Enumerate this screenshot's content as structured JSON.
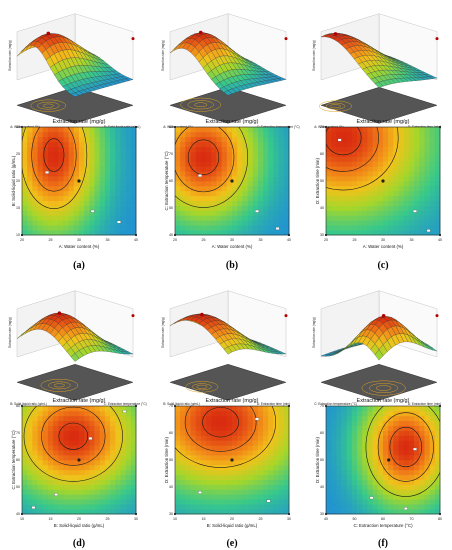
{
  "figure": {
    "panel_labels": [
      "(a)",
      "(b)",
      "(c)",
      "(d)",
      "(e)",
      "(f)"
    ]
  },
  "colors": {
    "high": "#d92b10",
    "mid_high": "#f07818",
    "mid": "#f2c21a",
    "mid_low": "#a6d62a",
    "low": "#37c88c",
    "lowest": "#1f8fd6",
    "contour_line": "#1a1a1a",
    "floor": "#555555"
  },
  "chart_data": [
    {
      "id": "a",
      "type": "heatmap",
      "title": "Extraction rate (mg/g)",
      "xlabel": "A: Water content (%)",
      "ylabel": "B: Solid-liquid ratio (g/mL)",
      "surface_xlabel": "A: Water content (%)",
      "surface_ylabel": "B: Solid-liquid ratio (g/mL)",
      "zlabel": "Extraction rate (mg/g)",
      "x_ticks": [
        "20",
        "25",
        "30",
        "35",
        "40"
      ],
      "y_ticks": [
        "10",
        "15",
        "20",
        "25",
        "30"
      ],
      "optimum": [
        0.28,
        0.74
      ],
      "spread": [
        0.42,
        0.72
      ],
      "contour_levels": [
        0.58,
        0.78,
        0.95
      ],
      "points": [
        [
          0.22,
          0.58
        ],
        [
          0.5,
          0.5
        ],
        [
          0.62,
          0.22
        ],
        [
          0.85,
          0.12
        ]
      ]
    },
    {
      "id": "b",
      "type": "heatmap",
      "title": "Extraction rate (mg/g)",
      "xlabel": "A: Water content (%)",
      "ylabel": "C: Extraction temperature (°C)",
      "surface_xlabel": "A: Water content (%)",
      "surface_ylabel": "C: Extraction temperature (°C)",
      "zlabel": "Extraction rate (mg/g)",
      "x_ticks": [
        "20",
        "25",
        "30",
        "35",
        "40"
      ],
      "y_ticks": [
        "40",
        "50",
        "60",
        "70",
        "80"
      ],
      "optimum": [
        0.25,
        0.72
      ],
      "spread": [
        0.5,
        0.6
      ],
      "contour_levels": [
        0.5,
        0.72,
        0.92
      ],
      "points": [
        [
          0.22,
          0.55
        ],
        [
          0.5,
          0.5
        ],
        [
          0.72,
          0.22
        ],
        [
          0.9,
          0.06
        ]
      ]
    },
    {
      "id": "c",
      "type": "heatmap",
      "title": "Extraction rate (mg/g)",
      "xlabel": "A: Water content (%)",
      "ylabel": "D: Extraction time (min)",
      "surface_xlabel": "A: Water content (%)",
      "surface_ylabel": "D: Extraction time (min)",
      "zlabel": "Extraction rate (mg/g)",
      "x_ticks": [
        "20",
        "25",
        "30",
        "35",
        "40"
      ],
      "y_ticks": [
        "30",
        "40",
        "50",
        "60",
        "70"
      ],
      "optimum": [
        0.15,
        0.9
      ],
      "spread": [
        0.75,
        0.75
      ],
      "contour_levels": [
        0.62,
        0.82,
        0.95
      ],
      "points": [
        [
          0.12,
          0.88
        ],
        [
          0.5,
          0.5
        ],
        [
          0.78,
          0.22
        ],
        [
          0.9,
          0.04
        ]
      ]
    },
    {
      "id": "d",
      "type": "heatmap",
      "title": "Extraction rate (mg/g)",
      "xlabel": "B: Solid-liquid ratio (g/mL)",
      "ylabel": "C: Extraction temperature (°C)",
      "surface_xlabel": "B: Solid-liquid ratio (g/mL)",
      "surface_ylabel": "C: Extraction temperature (°C)",
      "zlabel": "Extraction rate (mg/g)",
      "x_ticks": [
        "10",
        "15",
        "20",
        "25",
        "30"
      ],
      "y_ticks": [
        "40",
        "50",
        "60",
        "70",
        "80"
      ],
      "optimum": [
        0.45,
        0.72
      ],
      "spread": [
        0.6,
        0.58
      ],
      "contour_levels": [
        0.55,
        0.78,
        0.95
      ],
      "points": [
        [
          0.6,
          0.7
        ],
        [
          0.5,
          0.5
        ],
        [
          0.3,
          0.18
        ],
        [
          0.9,
          0.95
        ],
        [
          0.1,
          0.06
        ]
      ]
    },
    {
      "id": "e",
      "type": "heatmap",
      "title": "Extraction rate (mg/g)",
      "xlabel": "B: Solid-liquid ratio (g/mL)",
      "ylabel": "D: Extraction time (min)",
      "surface_xlabel": "B: Solid-liquid ratio (g/mL)",
      "surface_ylabel": "D: Extraction time (min)",
      "zlabel": "Extraction rate (mg/g)",
      "x_ticks": [
        "10",
        "15",
        "20",
        "25",
        "30"
      ],
      "y_ticks": [
        "30",
        "40",
        "50",
        "60",
        "70"
      ],
      "optimum": [
        0.4,
        0.85
      ],
      "spread": [
        0.75,
        0.65
      ],
      "contour_levels": [
        0.62,
        0.82,
        0.95
      ],
      "points": [
        [
          0.72,
          0.88
        ],
        [
          0.5,
          0.5
        ],
        [
          0.22,
          0.2
        ],
        [
          0.82,
          0.12
        ]
      ]
    },
    {
      "id": "f",
      "type": "heatmap",
      "title": "Extraction rate (mg/g)",
      "xlabel": "C: Extraction temperature (°C)",
      "ylabel": "D: Extraction time (min)",
      "surface_xlabel": "C: Extraction temperature (°C)",
      "surface_ylabel": "D: Extraction time (min)",
      "zlabel": "Extraction rate (mg/g)",
      "x_ticks": [
        "40",
        "50",
        "60",
        "70",
        "80"
      ],
      "y_ticks": [
        "30",
        "40",
        "50",
        "60",
        "70"
      ],
      "optimum": [
        0.7,
        0.62
      ],
      "spread": [
        0.42,
        0.55
      ],
      "contour_levels": [
        0.45,
        0.68,
        0.88
      ],
      "points": [
        [
          0.78,
          0.6
        ],
        [
          0.55,
          0.5
        ],
        [
          0.4,
          0.15
        ],
        [
          0.7,
          0.05
        ]
      ]
    }
  ]
}
